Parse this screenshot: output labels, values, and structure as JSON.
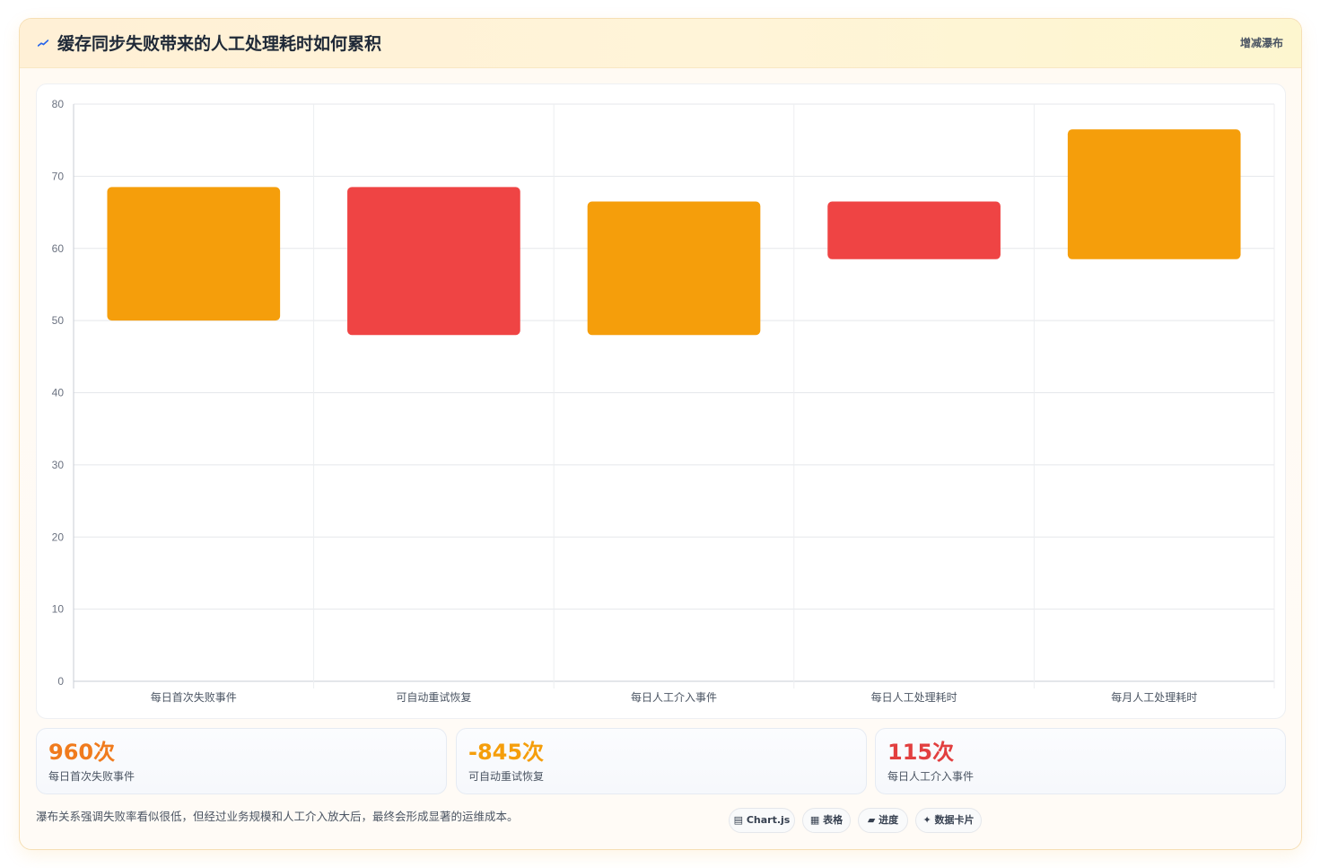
{
  "header": {
    "title": "缓存同步失败带来的人工处理耗时如何累积",
    "chart_type_label": "增减瀑布"
  },
  "chart_data": {
    "type": "bar",
    "subtype": "floating-range",
    "title": "缓存同步失败带来的人工处理耗时如何累积",
    "categories": [
      "每日首次失败事件",
      "可自动重试恢复",
      "每日人工介入事件",
      "每日人工处理耗时",
      "每月人工处理耗时"
    ],
    "ranges": [
      [
        50,
        68.5
      ],
      [
        48,
        68.5
      ],
      [
        48,
        66.5
      ],
      [
        58.5,
        66.5
      ],
      [
        58.5,
        76.5
      ]
    ],
    "colors": [
      "#f59e0b",
      "#ef4444",
      "#f59e0b",
      "#ef4444",
      "#f59e0b"
    ],
    "y_ticks": [
      0,
      10,
      20,
      30,
      40,
      50,
      60,
      70,
      80
    ],
    "ylim": [
      0,
      80
    ],
    "grid": true,
    "legend": "none",
    "xlabel": "",
    "ylabel": ""
  },
  "kpis": [
    {
      "value": "960次",
      "label": "每日首次失败事件",
      "color": "#f07b1d"
    },
    {
      "value": "-845次",
      "label": "可自动重试恢复",
      "color": "#f59e0b"
    },
    {
      "value": "115次",
      "label": "每日人工介入事件",
      "color": "#e23f3f"
    }
  ],
  "footnote": "瀑布关系强调失败率看似很低，但经过业务规模和人工介入放大后，最终会形成显著的运维成本。",
  "pills": [
    {
      "icon": "chart-icon",
      "label": "▤ Chart.js"
    },
    {
      "icon": "table-icon",
      "label": "▦ 表格"
    },
    {
      "icon": "progress-icon",
      "label": "▰ 进度"
    },
    {
      "icon": "card-icon",
      "label": "✦ 数据卡片"
    }
  ]
}
